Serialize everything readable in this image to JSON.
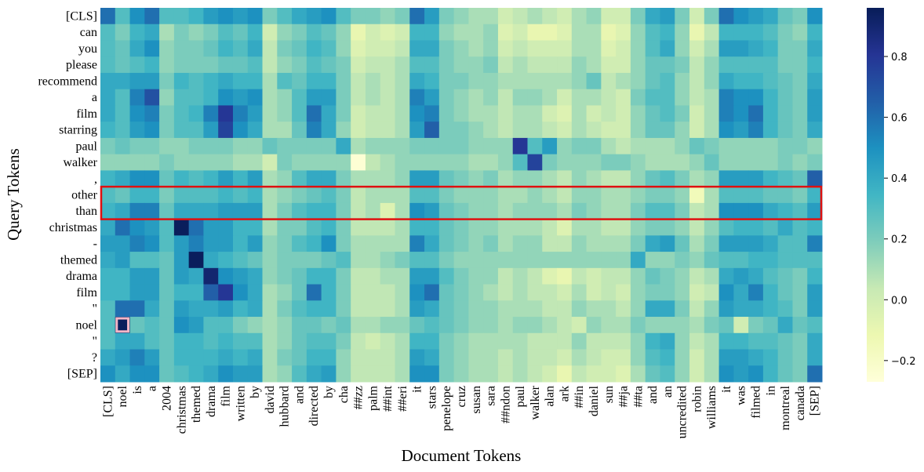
{
  "chart_data": {
    "type": "heatmap",
    "x_label": "Document Tokens",
    "y_label": "Query Tokens",
    "x": [
      "[CLS]",
      "noel",
      "is",
      "a",
      "2004",
      "christmas",
      "themed",
      "drama",
      "film",
      "written",
      "by",
      "david",
      "hubbard",
      "and",
      "directed",
      "by",
      "cha",
      "##zz",
      "palm",
      "##int",
      "##eri",
      "it",
      "stars",
      "penelope",
      "cruz",
      "susan",
      "sara",
      "##ndon",
      "paul",
      "walker",
      "alan",
      "ark",
      "##in",
      "daniel",
      "sun",
      "##ja",
      "##ta",
      "and",
      "an",
      "uncredited",
      "robin",
      "williams",
      "it",
      "was",
      "filmed",
      "in",
      "montreal",
      "canada",
      "[SEP]"
    ],
    "y": [
      "[CLS]",
      "can",
      "you",
      "please",
      "recommend",
      "a",
      "film",
      "starring",
      "paul",
      "walker",
      ",",
      "other",
      "than",
      "christmas",
      "-",
      "themed",
      "drama",
      "film",
      "\"",
      "noel",
      "\"",
      "?",
      "[SEP]"
    ],
    "values": [
      [
        0.6,
        0.3,
        0.5,
        0.6,
        0.3,
        0.3,
        0.35,
        0.45,
        0.5,
        0.45,
        0.5,
        0.2,
        0.3,
        0.4,
        0.45,
        0.5,
        0.3,
        0.2,
        0.2,
        0.15,
        0.2,
        0.6,
        0.45,
        0.2,
        0.15,
        0.1,
        0.1,
        0.0,
        0.05,
        0.1,
        0.05,
        0.0,
        0.1,
        0.15,
        0.0,
        0.0,
        0.2,
        0.4,
        0.45,
        0.2,
        0.0,
        0.2,
        0.6,
        0.5,
        0.45,
        0.4,
        0.25,
        0.2,
        0.5
      ],
      [
        0.3,
        0.2,
        0.35,
        0.4,
        0.1,
        0.2,
        0.15,
        0.2,
        0.3,
        0.25,
        0.35,
        0.0,
        0.15,
        0.2,
        0.3,
        0.25,
        0.15,
        -0.1,
        0.0,
        -0.05,
        0.0,
        0.35,
        0.35,
        0.15,
        0.1,
        0.1,
        0.15,
        -0.05,
        0.0,
        -0.1,
        -0.1,
        -0.05,
        0.1,
        0.1,
        -0.1,
        -0.05,
        0.15,
        0.3,
        0.35,
        0.15,
        -0.1,
        0.05,
        0.35,
        0.35,
        0.35,
        0.3,
        0.2,
        0.15,
        0.35
      ],
      [
        0.3,
        0.25,
        0.4,
        0.5,
        0.15,
        0.2,
        0.2,
        0.25,
        0.35,
        0.3,
        0.4,
        0.05,
        0.2,
        0.25,
        0.35,
        0.3,
        0.15,
        -0.05,
        0.0,
        0.0,
        0.05,
        0.4,
        0.4,
        0.2,
        0.15,
        0.1,
        0.15,
        0.0,
        0.05,
        0.0,
        0.0,
        0.0,
        0.1,
        0.1,
        -0.05,
        0.0,
        0.15,
        0.3,
        0.4,
        0.15,
        0.0,
        0.1,
        0.45,
        0.45,
        0.4,
        0.35,
        0.2,
        0.2,
        0.4
      ],
      [
        0.3,
        0.25,
        0.3,
        0.35,
        0.15,
        0.2,
        0.2,
        0.2,
        0.25,
        0.25,
        0.3,
        0.05,
        0.15,
        0.2,
        0.3,
        0.25,
        0.2,
        0.0,
        0.05,
        0.05,
        0.1,
        0.3,
        0.3,
        0.2,
        0.15,
        0.15,
        0.2,
        0.05,
        0.1,
        0.05,
        0.05,
        0.05,
        0.15,
        0.1,
        0.0,
        0.0,
        0.15,
        0.25,
        0.25,
        0.2,
        0.05,
        0.15,
        0.3,
        0.3,
        0.3,
        0.3,
        0.2,
        0.2,
        0.35
      ],
      [
        0.4,
        0.4,
        0.45,
        0.45,
        0.2,
        0.35,
        0.3,
        0.35,
        0.4,
        0.35,
        0.35,
        0.1,
        0.3,
        0.25,
        0.35,
        0.35,
        0.2,
        0.05,
        0.1,
        0.05,
        0.1,
        0.4,
        0.35,
        0.2,
        0.2,
        0.15,
        0.15,
        0.1,
        0.1,
        0.1,
        0.1,
        0.1,
        0.15,
        0.25,
        0.05,
        0.1,
        0.15,
        0.25,
        0.3,
        0.15,
        0.05,
        0.15,
        0.4,
        0.35,
        0.35,
        0.3,
        0.25,
        0.2,
        0.4
      ],
      [
        0.4,
        0.3,
        0.55,
        0.7,
        0.15,
        0.3,
        0.3,
        0.35,
        0.5,
        0.45,
        0.5,
        0.1,
        0.15,
        0.3,
        0.45,
        0.45,
        0.2,
        0.05,
        0.1,
        0.05,
        0.1,
        0.55,
        0.45,
        0.2,
        0.15,
        0.1,
        0.15,
        0.05,
        0.15,
        0.15,
        0.1,
        0.0,
        0.1,
        0.1,
        0.05,
        0.0,
        0.2,
        0.3,
        0.3,
        0.15,
        0.05,
        0.1,
        0.55,
        0.5,
        0.5,
        0.35,
        0.25,
        0.2,
        0.45
      ],
      [
        0.4,
        0.3,
        0.5,
        0.55,
        0.2,
        0.3,
        0.35,
        0.55,
        0.8,
        0.55,
        0.45,
        0.1,
        0.15,
        0.3,
        0.6,
        0.4,
        0.2,
        0.0,
        0.05,
        0.05,
        0.1,
        0.5,
        0.55,
        0.2,
        0.15,
        0.1,
        0.1,
        0.05,
        0.1,
        0.1,
        0.0,
        -0.05,
        0.1,
        0.0,
        0.05,
        0.0,
        0.15,
        0.25,
        0.3,
        0.2,
        0.0,
        0.1,
        0.55,
        0.5,
        0.6,
        0.35,
        0.25,
        0.2,
        0.45
      ],
      [
        0.35,
        0.3,
        0.45,
        0.5,
        0.2,
        0.3,
        0.3,
        0.45,
        0.75,
        0.5,
        0.4,
        0.1,
        0.1,
        0.25,
        0.55,
        0.4,
        0.15,
        0.0,
        0.05,
        0.05,
        0.1,
        0.45,
        0.65,
        0.2,
        0.2,
        0.15,
        0.1,
        0.05,
        0.1,
        0.1,
        0.05,
        0.0,
        0.1,
        0.05,
        0.0,
        0.0,
        0.15,
        0.25,
        0.25,
        0.15,
        0.0,
        0.1,
        0.5,
        0.45,
        0.55,
        0.35,
        0.25,
        0.2,
        0.4
      ],
      [
        0.2,
        0.25,
        0.2,
        0.2,
        0.15,
        0.15,
        0.2,
        0.2,
        0.2,
        0.15,
        0.15,
        0.25,
        0.2,
        0.2,
        0.2,
        0.2,
        0.4,
        0.1,
        0.15,
        0.15,
        0.15,
        0.2,
        0.2,
        0.2,
        0.2,
        0.15,
        0.15,
        0.15,
        0.8,
        0.3,
        0.45,
        0.15,
        0.2,
        0.2,
        0.1,
        0.05,
        0.1,
        0.1,
        0.1,
        0.15,
        0.25,
        0.2,
        0.15,
        0.15,
        0.15,
        0.15,
        0.2,
        0.2,
        0.15
      ],
      [
        0.15,
        0.15,
        0.15,
        0.15,
        0.2,
        0.15,
        0.15,
        0.15,
        0.15,
        0.1,
        0.1,
        0.0,
        0.2,
        0.15,
        0.15,
        0.15,
        0.15,
        -0.25,
        0.05,
        0.1,
        0.15,
        0.15,
        0.15,
        0.15,
        0.15,
        0.1,
        0.1,
        0.15,
        0.3,
        0.75,
        0.2,
        0.15,
        0.15,
        0.15,
        0.2,
        0.2,
        0.15,
        0.1,
        0.1,
        0.1,
        0.15,
        0.25,
        0.15,
        0.15,
        0.15,
        0.15,
        0.2,
        0.15,
        0.2
      ],
      [
        0.35,
        0.4,
        0.5,
        0.5,
        0.25,
        0.35,
        0.3,
        0.35,
        0.45,
        0.35,
        0.45,
        0.1,
        0.15,
        0.3,
        0.4,
        0.4,
        0.2,
        0.1,
        0.1,
        0.1,
        0.15,
        0.45,
        0.45,
        0.25,
        0.2,
        0.15,
        0.2,
        0.1,
        0.15,
        0.15,
        0.1,
        0.05,
        0.15,
        0.1,
        0.05,
        0.05,
        0.15,
        0.25,
        0.3,
        0.2,
        0.1,
        0.15,
        0.45,
        0.45,
        0.45,
        0.35,
        0.3,
        0.25,
        0.65
      ],
      [
        0.3,
        0.25,
        0.35,
        0.35,
        0.2,
        0.3,
        0.3,
        0.3,
        0.35,
        0.3,
        0.35,
        0.1,
        0.15,
        0.2,
        0.25,
        0.3,
        0.2,
        0.05,
        0.1,
        0.1,
        0.1,
        0.3,
        0.3,
        0.2,
        0.15,
        0.15,
        0.15,
        0.1,
        0.1,
        0.15,
        0.1,
        0.05,
        0.15,
        0.15,
        0.1,
        0.1,
        0.15,
        0.2,
        0.2,
        0.15,
        -0.15,
        0.1,
        0.3,
        0.3,
        0.3,
        0.25,
        0.25,
        0.2,
        0.35
      ],
      [
        0.35,
        0.4,
        0.55,
        0.55,
        0.25,
        0.4,
        0.4,
        0.4,
        0.45,
        0.45,
        0.45,
        0.1,
        0.2,
        0.3,
        0.35,
        0.35,
        0.2,
        0.05,
        0.1,
        -0.05,
        0.1,
        0.5,
        0.45,
        0.25,
        0.2,
        0.15,
        0.15,
        0.1,
        0.15,
        0.15,
        0.15,
        0.1,
        0.2,
        0.15,
        0.1,
        0.1,
        0.2,
        0.3,
        0.3,
        0.2,
        0.05,
        0.1,
        0.5,
        0.5,
        0.5,
        0.4,
        0.35,
        0.3,
        0.45
      ],
      [
        0.4,
        0.6,
        0.5,
        0.45,
        0.3,
        0.95,
        0.6,
        0.45,
        0.45,
        0.35,
        0.35,
        0.1,
        0.2,
        0.2,
        0.3,
        0.35,
        0.2,
        0.05,
        0.05,
        0.05,
        0.1,
        0.35,
        0.35,
        0.25,
        0.2,
        0.15,
        0.15,
        0.1,
        0.1,
        0.1,
        0.05,
        -0.05,
        0.1,
        0.1,
        0.05,
        0.05,
        0.15,
        0.2,
        0.2,
        0.15,
        0.05,
        0.15,
        0.3,
        0.35,
        0.35,
        0.3,
        0.4,
        0.3,
        0.35
      ],
      [
        0.45,
        0.45,
        0.55,
        0.5,
        0.3,
        0.45,
        0.55,
        0.45,
        0.45,
        0.35,
        0.45,
        0.15,
        0.2,
        0.3,
        0.35,
        0.5,
        0.2,
        0.1,
        0.1,
        0.1,
        0.1,
        0.55,
        0.4,
        0.25,
        0.2,
        0.15,
        0.2,
        0.1,
        0.15,
        0.15,
        0.05,
        0.05,
        0.15,
        0.1,
        0.1,
        0.1,
        0.2,
        0.4,
        0.45,
        0.25,
        0.1,
        0.2,
        0.45,
        0.45,
        0.45,
        0.4,
        0.3,
        0.3,
        0.55
      ],
      [
        0.4,
        0.45,
        0.3,
        0.3,
        0.25,
        0.45,
        0.95,
        0.4,
        0.35,
        0.3,
        0.25,
        0.15,
        0.2,
        0.2,
        0.2,
        0.25,
        0.3,
        0.1,
        0.1,
        0.15,
        0.2,
        0.3,
        0.3,
        0.2,
        0.15,
        0.15,
        0.15,
        0.15,
        0.15,
        0.15,
        0.15,
        0.15,
        0.15,
        0.15,
        0.15,
        0.15,
        0.4,
        0.15,
        0.15,
        0.2,
        0.15,
        0.25,
        0.3,
        0.3,
        0.35,
        0.35,
        0.3,
        0.3,
        0.3
      ],
      [
        0.35,
        0.35,
        0.45,
        0.45,
        0.25,
        0.45,
        0.4,
        0.9,
        0.5,
        0.45,
        0.4,
        0.15,
        0.2,
        0.25,
        0.35,
        0.35,
        0.2,
        0.05,
        0.05,
        0.1,
        0.1,
        0.45,
        0.45,
        0.3,
        0.2,
        0.15,
        0.15,
        0.05,
        0.1,
        0.05,
        -0.05,
        -0.1,
        0.05,
        0.0,
        0.05,
        0.05,
        0.15,
        0.25,
        0.2,
        0.15,
        0.05,
        0.1,
        0.4,
        0.45,
        0.4,
        0.3,
        0.25,
        0.2,
        0.35
      ],
      [
        0.35,
        0.35,
        0.45,
        0.45,
        0.25,
        0.35,
        0.35,
        0.65,
        0.8,
        0.5,
        0.4,
        0.1,
        0.15,
        0.25,
        0.6,
        0.35,
        0.2,
        0.05,
        0.05,
        0.05,
        0.1,
        0.5,
        0.6,
        0.25,
        0.2,
        0.15,
        0.1,
        0.05,
        0.1,
        0.05,
        0.05,
        0.0,
        0.1,
        0.0,
        0.05,
        0.0,
        0.15,
        0.2,
        0.2,
        0.15,
        0.0,
        0.05,
        0.5,
        0.4,
        0.55,
        0.35,
        0.25,
        0.2,
        0.45
      ],
      [
        0.3,
        0.6,
        0.6,
        0.4,
        0.25,
        0.45,
        0.4,
        0.4,
        0.45,
        0.35,
        0.4,
        0.1,
        0.2,
        0.3,
        0.35,
        0.35,
        0.2,
        0.05,
        0.05,
        0.05,
        0.1,
        0.45,
        0.4,
        0.25,
        0.2,
        0.15,
        0.15,
        0.1,
        0.1,
        0.1,
        0.05,
        0.05,
        0.15,
        0.1,
        0.1,
        0.05,
        0.15,
        0.4,
        0.4,
        0.2,
        0.05,
        0.15,
        0.45,
        0.4,
        0.4,
        0.35,
        0.3,
        0.2,
        0.45
      ],
      [
        0.3,
        0.95,
        0.25,
        0.3,
        0.25,
        0.5,
        0.45,
        0.3,
        0.3,
        0.2,
        0.15,
        0.1,
        0.15,
        0.25,
        0.25,
        0.2,
        0.25,
        0.1,
        0.1,
        0.15,
        0.15,
        0.25,
        0.3,
        0.25,
        0.2,
        0.15,
        0.15,
        0.1,
        0.15,
        0.15,
        0.1,
        0.05,
        0.0,
        0.15,
        0.1,
        0.1,
        0.2,
        0.15,
        0.15,
        0.15,
        0.1,
        0.2,
        0.25,
        0.0,
        0.2,
        0.25,
        0.4,
        0.25,
        0.3
      ],
      [
        0.3,
        0.4,
        0.4,
        0.3,
        0.25,
        0.35,
        0.35,
        0.3,
        0.35,
        0.3,
        0.3,
        0.1,
        0.15,
        0.25,
        0.3,
        0.3,
        0.2,
        0.05,
        0.0,
        0.05,
        0.1,
        0.35,
        0.35,
        0.2,
        0.15,
        0.1,
        0.1,
        0.1,
        0.1,
        0.05,
        0.05,
        0.05,
        0.15,
        0.05,
        0.05,
        0.05,
        0.15,
        0.35,
        0.4,
        0.15,
        0.05,
        0.1,
        0.35,
        0.35,
        0.3,
        0.3,
        0.25,
        0.2,
        0.4
      ],
      [
        0.4,
        0.45,
        0.55,
        0.45,
        0.25,
        0.35,
        0.35,
        0.35,
        0.4,
        0.35,
        0.4,
        0.1,
        0.2,
        0.25,
        0.35,
        0.35,
        0.15,
        0.05,
        0.05,
        0.05,
        0.1,
        0.45,
        0.4,
        0.2,
        0.15,
        0.1,
        0.1,
        0.05,
        0.1,
        0.05,
        0.05,
        0.0,
        0.1,
        0.05,
        0.0,
        0.0,
        0.15,
        0.3,
        0.35,
        0.15,
        0.0,
        0.1,
        0.45,
        0.45,
        0.4,
        0.35,
        0.25,
        0.2,
        0.4
      ],
      [
        0.5,
        0.4,
        0.5,
        0.5,
        0.25,
        0.3,
        0.35,
        0.4,
        0.5,
        0.45,
        0.45,
        0.1,
        0.15,
        0.3,
        0.4,
        0.45,
        0.15,
        0.05,
        0.05,
        0.05,
        0.1,
        0.5,
        0.5,
        0.2,
        0.15,
        0.1,
        0.1,
        0.05,
        0.1,
        0.05,
        0.0,
        -0.1,
        0.05,
        0.0,
        0.0,
        -0.05,
        0.1,
        0.25,
        0.3,
        0.15,
        0.0,
        0.1,
        0.5,
        0.45,
        0.5,
        0.35,
        0.25,
        0.2,
        0.6
      ]
    ],
    "colormap": [
      "#ffffd9",
      "#edf8b1",
      "#c7e9b4",
      "#7fcdbb",
      "#41b6c4",
      "#1d91c0",
      "#225ea8",
      "#253494",
      "#081d58"
    ],
    "clim": [
      -0.27,
      0.96
    ],
    "cticks": [
      {
        "value": -0.2,
        "label": "−0.2"
      },
      {
        "value": 0,
        "label": "0.0"
      },
      0.2,
      0.4,
      0.6,
      0.8
    ]
  }
}
